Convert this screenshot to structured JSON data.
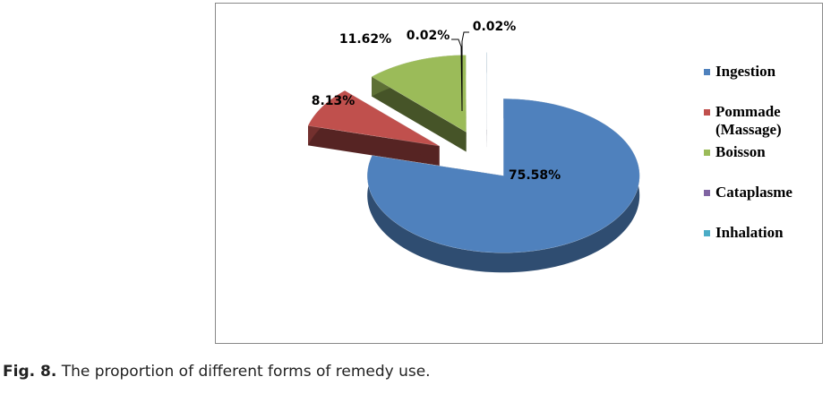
{
  "chart_data": {
    "type": "pie",
    "categories": [
      "Ingestion",
      "Pommade (Massage)",
      "Boisson",
      "Cataplasme",
      "Inhalation"
    ],
    "values": [
      75.58,
      8.13,
      11.62,
      0.02,
      0.02
    ],
    "value_labels": [
      "75.58%",
      "8.13%",
      "11.62%",
      "0.02%",
      "0.02%"
    ],
    "colors": [
      "#4f81bd",
      "#c0504d",
      "#9bbb59",
      "#8064a2",
      "#4bacc6"
    ],
    "legend": "right",
    "caption_label": "Fig. 8.",
    "caption": "The proportion of different forms of remedy use."
  }
}
